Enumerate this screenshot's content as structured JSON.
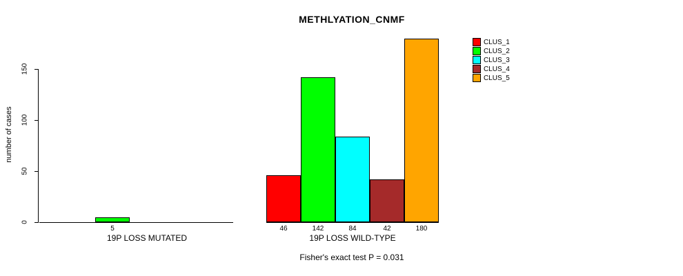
{
  "chart_data": {
    "type": "bar",
    "title": "METHLYATION_CNMF",
    "ylabel": "number of cases",
    "note": "Fisher's exact test P = 0.031",
    "ylim": [
      0,
      185
    ],
    "yticks": [
      0,
      50,
      100,
      150
    ],
    "grid": false,
    "legend_position": "right",
    "clusters": [
      {
        "name": "CLUS_1",
        "color": "#ff0000"
      },
      {
        "name": "CLUS_2",
        "color": "#00ff00"
      },
      {
        "name": "CLUS_3",
        "color": "#00ffff"
      },
      {
        "name": "CLUS_4",
        "color": "#a52a2a"
      },
      {
        "name": "CLUS_5",
        "color": "#ffa500"
      }
    ],
    "groups": [
      {
        "label": "19P LOSS MUTATED",
        "values": [
          0,
          5,
          0,
          0,
          0
        ]
      },
      {
        "label": "19P LOSS WILD-TYPE",
        "values": [
          46,
          142,
          84,
          42,
          180
        ]
      }
    ]
  }
}
